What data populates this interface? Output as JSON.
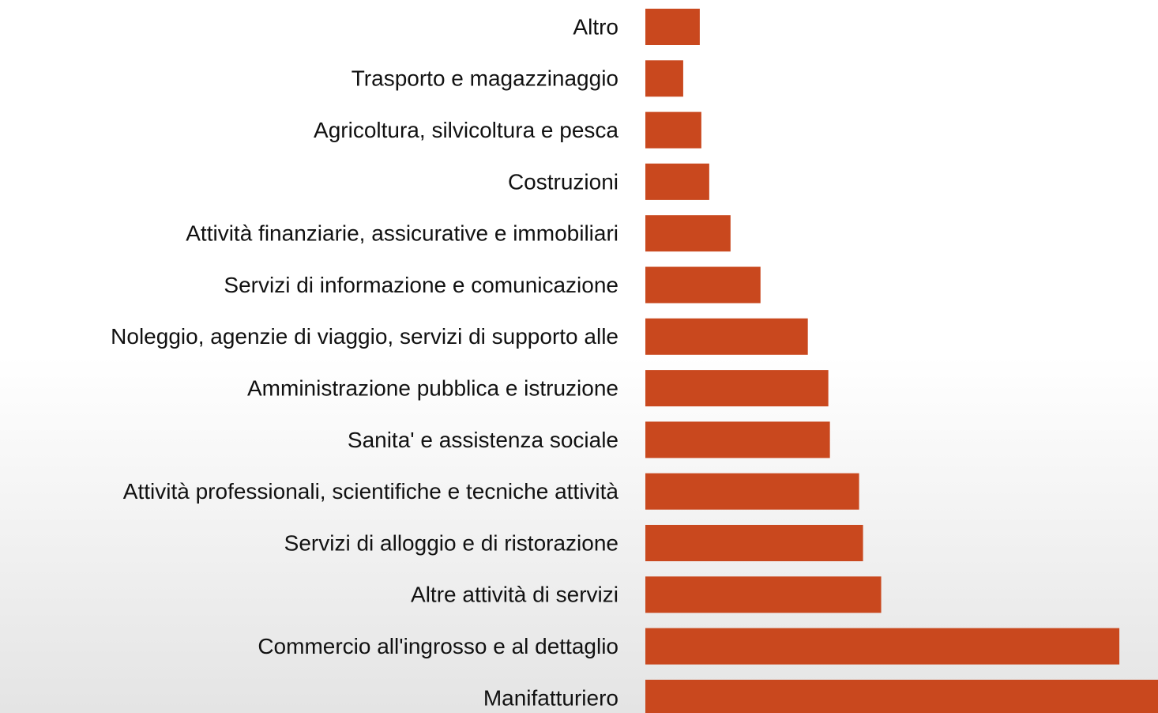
{
  "chart_data": {
    "type": "hbar",
    "categories": [
      "Altro",
      "Trasporto e magazzinaggio",
      "Agricoltura, silvicoltura e pesca",
      "Costruzioni",
      "Attività finanziarie, assicurative e immobiliari",
      "Servizi di informazione e comunicazione",
      "Noleggio, agenzie di viaggio, servizi di supporto alle",
      "Amministrazione pubblica e istruzione",
      "Sanita' e assistenza sociale",
      "Attività professionali, scientifiche e tecniche attività",
      "Servizi di alloggio e di ristorazione",
      "Altre attività di servizi",
      "Commercio all'ingrosso e al dettaglio",
      "Manifatturiero"
    ],
    "values": [
      69,
      48,
      71,
      81,
      108,
      146,
      206,
      232,
      234,
      271,
      276,
      299,
      601,
      660
    ],
    "color": "#c9481e",
    "xlim": [
      0,
      650
    ]
  }
}
